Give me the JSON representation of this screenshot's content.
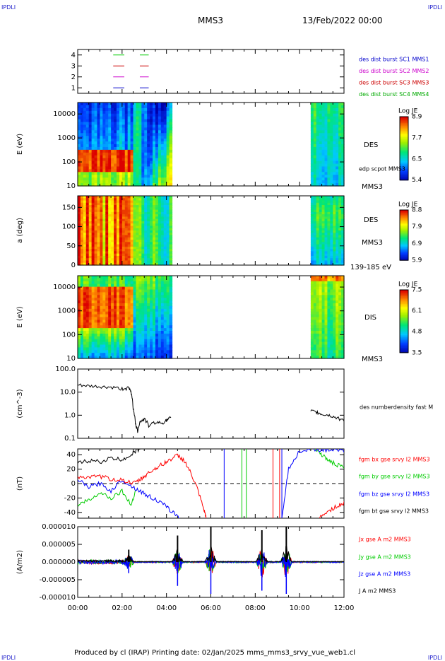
{
  "header": {
    "corner_tl": "IPDLI",
    "corner_tr": "IPDLI",
    "corner_bl": "IPDLI",
    "corner_br": "IPDLI",
    "spacecraft": "MMS3",
    "date": "13/Feb/2022 00:00"
  },
  "footer": {
    "text": "Produced by cl (IRAP)   Printing date: 02/Jan/2025   mms_mms3_srvy_vue_web1.cl"
  },
  "colors": {
    "red": "#ff0000",
    "green": "#00cc00",
    "blue": "#0000ff",
    "magenta": "#ff00ff",
    "black": "#000000"
  },
  "chart_data": [
    {
      "type": "line",
      "panel": "burst-availability",
      "y_ticks": [
        "4",
        "3",
        "2",
        "1"
      ],
      "ylim": [
        0.5,
        4.5
      ],
      "series": [
        {
          "name": "des dist burst SC1 MMS1",
          "label_color": "#0000cc",
          "line_color": "#00cc00",
          "level": 4,
          "segments": [
            [
              1.6,
              2.1
            ],
            [
              2.8,
              3.2
            ]
          ]
        },
        {
          "name": "des dist burst SC2 MMS2",
          "label_color": "#cc00cc",
          "line_color": "#cc0000",
          "level": 3,
          "segments": [
            [
              1.6,
              2.1
            ],
            [
              2.8,
              3.2
            ]
          ]
        },
        {
          "name": "des dist burst SC3 MMS3",
          "label_color": "#cc0000",
          "line_color": "#cc00cc",
          "level": 2,
          "segments": [
            [
              1.6,
              2.1
            ],
            [
              2.8,
              3.2
            ]
          ]
        },
        {
          "name": "des dist burst SC4 MMS4",
          "label_color": "#00aa00",
          "line_color": "#0000cc",
          "level": 1,
          "segments": [
            [
              1.6,
              2.1
            ],
            [
              2.8,
              3.2
            ]
          ]
        }
      ]
    },
    {
      "type": "heatmap",
      "panel": "des-energy",
      "ylabel": "E (eV)",
      "y_ticks": [
        "10000",
        "1000",
        "100",
        "10"
      ],
      "yscale": "log",
      "ylim": [
        10,
        30000
      ],
      "right_labels": [
        "DES",
        "edp scpot MMS3",
        "MMS3"
      ],
      "colorbar": {
        "title": "Log JE",
        "ticks": [
          "8.9",
          "7.7",
          "6.5",
          "5.4"
        ],
        "range": [
          5.4,
          8.9
        ]
      },
      "data_intervals": [
        [
          0.0,
          4.2
        ],
        [
          10.5,
          12.0
        ]
      ]
    },
    {
      "type": "heatmap",
      "panel": "des-pitch-angle",
      "ylabel": "a (deg)",
      "y_ticks": [
        "150",
        "100",
        "50",
        "0"
      ],
      "ylim": [
        0,
        180
      ],
      "right_labels": [
        "DES",
        "MMS3",
        "139-185 eV"
      ],
      "colorbar": {
        "title": "Log JE",
        "ticks": [
          "8.8",
          "7.9",
          "6.9",
          "5.9"
        ],
        "range": [
          5.9,
          8.8
        ]
      },
      "data_intervals": [
        [
          0.0,
          4.2
        ],
        [
          10.5,
          12.0
        ]
      ]
    },
    {
      "type": "heatmap",
      "panel": "dis-energy",
      "ylabel": "E (eV)",
      "y_ticks": [
        "10000",
        "1000",
        "100",
        "10"
      ],
      "yscale": "log",
      "ylim": [
        10,
        30000
      ],
      "right_labels": [
        "DIS",
        "MMS3"
      ],
      "colorbar": {
        "title": "Log JE",
        "ticks": [
          "7.5",
          "6.1",
          "4.8",
          "3.5"
        ],
        "range": [
          3.5,
          7.5
        ]
      },
      "data_intervals": [
        [
          0.0,
          4.2
        ],
        [
          10.5,
          12.0
        ]
      ]
    },
    {
      "type": "line",
      "panel": "density",
      "ylabel": "(cm^-3)",
      "y_ticks": [
        "100.0",
        "10.0",
        "1.0",
        "0.1"
      ],
      "yscale": "log",
      "ylim": [
        0.1,
        100
      ],
      "series": [
        {
          "name": "des numberdensity fast M",
          "color": "#000000",
          "x": [
            0.0,
            0.5,
            1.0,
            1.5,
            2.0,
            2.3,
            2.4,
            2.5,
            2.6,
            2.7,
            2.8,
            3.0,
            3.2,
            3.5,
            3.8,
            4.0,
            4.2,
            10.5,
            10.8,
            11.0,
            11.3,
            11.6,
            12.0
          ],
          "y": [
            20,
            18,
            17,
            16,
            14,
            15,
            10,
            2.0,
            0.4,
            0.2,
            0.5,
            0.7,
            0.35,
            0.5,
            0.45,
            0.6,
            0.8,
            1.5,
            1.3,
            1.1,
            1.0,
            0.8,
            0.6
          ]
        }
      ]
    },
    {
      "type": "line",
      "panel": "magnetic-field",
      "ylabel": "(nT)",
      "y_ticks": [
        "40",
        "20",
        "0",
        "-20",
        "-40"
      ],
      "ylim": [
        -48,
        48
      ],
      "series": [
        {
          "name": "fgm bx gse srvy l2 MMS3",
          "color": "#ff0000",
          "x": [
            0.0,
            0.5,
            1.0,
            1.5,
            2.0,
            2.5,
            2.8,
            3.0,
            3.3,
            3.6,
            3.9,
            4.2,
            4.5,
            4.8,
            5.1,
            5.4,
            5.7,
            5.8,
            10.9,
            11.3,
            11.7,
            12.0
          ],
          "y": [
            10,
            8,
            10,
            6,
            5,
            0,
            5,
            10,
            17,
            23,
            28,
            34,
            39,
            32,
            14,
            -8,
            -38,
            -48,
            -48,
            -38,
            -31,
            -27
          ]
        },
        {
          "name": "fgm by gse srvy l2 MMS3",
          "color": "#00cc00",
          "x": [
            0.0,
            0.3,
            0.6,
            1.0,
            1.5,
            2.0,
            2.4,
            2.6,
            10.7,
            11.0,
            11.3,
            11.6,
            12.0
          ],
          "y": [
            -30,
            -25,
            -22,
            -12,
            -20,
            -10,
            -30,
            -10,
            48,
            40,
            32,
            27,
            22
          ]
        },
        {
          "name": "fgm bz gse srvy l2 MMS3",
          "color": "#0000ff",
          "x": [
            0.0,
            0.5,
            1.0,
            1.5,
            2.0,
            2.5,
            2.8,
            3.1,
            3.5,
            3.9,
            4.3,
            4.6,
            9.2,
            9.5,
            10.0,
            10.5,
            11.0,
            11.5,
            12.0
          ],
          "y": [
            5,
            -5,
            0,
            -10,
            5,
            -5,
            -10,
            -16,
            -22,
            -30,
            -40,
            -48,
            -48,
            20,
            45,
            48,
            47,
            46,
            45
          ]
        },
        {
          "name": "fgm bt gse srvy l2 MMS3",
          "color": "#000000",
          "x": [
            0.0,
            0.5,
            1.0,
            1.5,
            2.0,
            2.4,
            2.6,
            2.8
          ],
          "y": [
            28,
            32,
            30,
            35,
            33,
            40,
            45,
            48
          ]
        }
      ]
    },
    {
      "type": "line",
      "panel": "current-density",
      "ylabel": "(A/m2)",
      "y_ticks": [
        "0.000010",
        "0.000005",
        "0.000000",
        "-0.000005",
        "-0.000010"
      ],
      "ylim": [
        -1e-05,
        1e-05
      ],
      "x_ticks": [
        "00:00",
        "02:00",
        "04:00",
        "06:00",
        "08:00",
        "10:00",
        "12:00"
      ],
      "xlim": [
        0,
        12
      ],
      "series": [
        {
          "name": "Jx gse A m2 MMS3",
          "color": "#ff0000"
        },
        {
          "name": "Jy gse A m2 MMS3",
          "color": "#00cc00"
        },
        {
          "name": "Jz gse A m2 MMS3",
          "color": "#0000ff"
        },
        {
          "name": "J A m2 MMS3",
          "color": "#000000"
        }
      ],
      "spikes": [
        {
          "x": 2.3,
          "j": 3.5e-06
        },
        {
          "x": 4.5,
          "j": 7.5e-06
        },
        {
          "x": 6.0,
          "j": 1e-05
        },
        {
          "x": 8.3,
          "j": 9e-06
        },
        {
          "x": 9.4,
          "j": 1e-05
        }
      ]
    }
  ]
}
